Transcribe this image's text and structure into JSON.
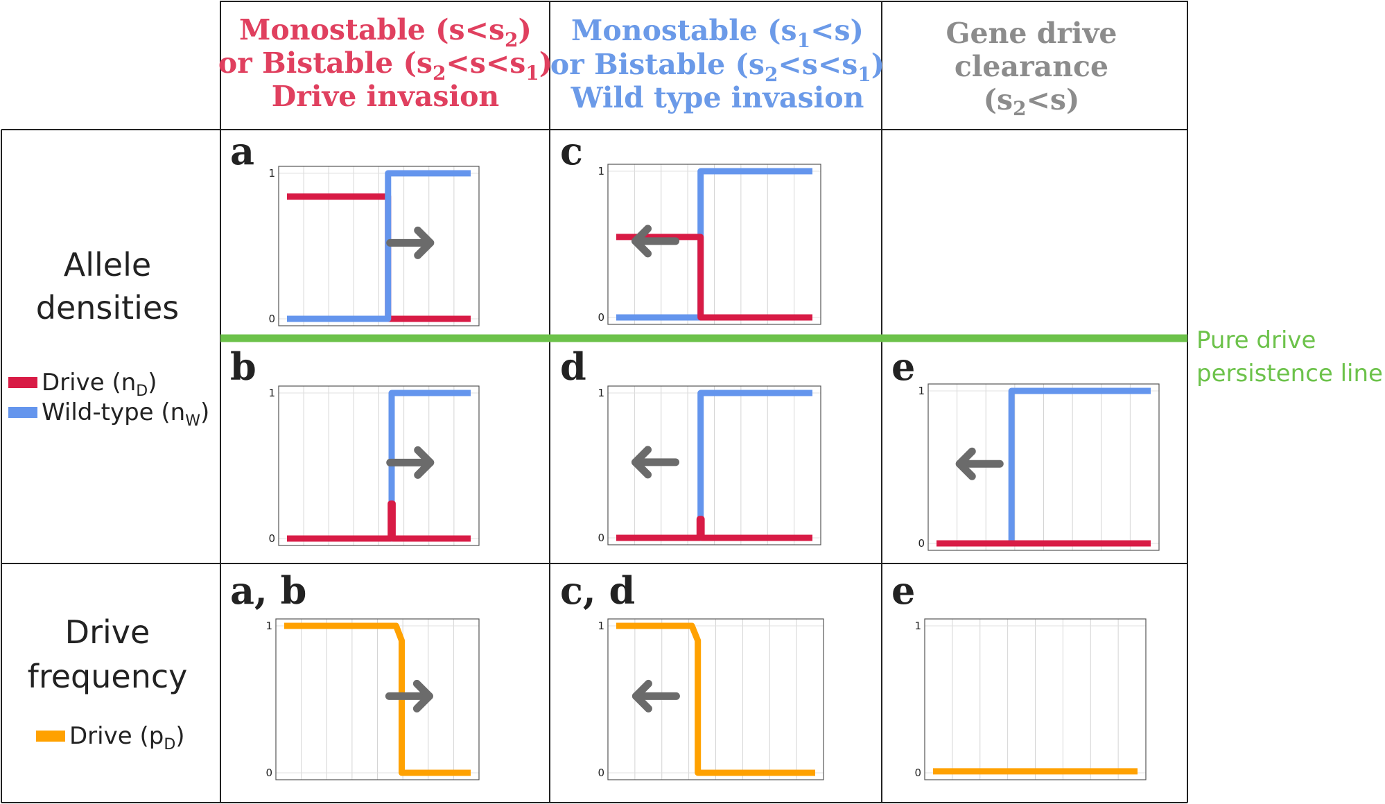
{
  "colors": {
    "drive": "#d81b45",
    "wild": "#6495ed",
    "freq": "#ffa100",
    "arrow": "#6b6b6b",
    "green": "#6cc24a",
    "header_red": "#e0405f",
    "header_blue": "#6b9ae8",
    "header_gray": "#8c8c8c"
  },
  "headers": {
    "col1": {
      "line1": "Monostable (s<s",
      "line1_sub": "2",
      "line1_end": ")",
      "line2a": "or Bistable (s",
      "line2_sub1": "2",
      "line2b": "<s<s",
      "line2_sub2": "1",
      "line2_end": ")",
      "line3": "Drive invasion"
    },
    "col2": {
      "line1": "Monostable (s",
      "line1_sub": "1",
      "line1_end": "<s)",
      "line2a": "or Bistable (s",
      "line2_sub1": "2",
      "line2b": "<s<s",
      "line2_sub2": "1",
      "line2_end": ")",
      "line3": "Wild type invasion"
    },
    "col3": {
      "line1": "Gene drive",
      "line2": "clearance",
      "line3a": "(s",
      "line3_sub": "2",
      "line3b": "<s)"
    }
  },
  "rows": {
    "allele": {
      "line1": "Allele",
      "line2": "densities"
    },
    "freq": {
      "line1": "Drive",
      "line2": "frequency"
    }
  },
  "legend": {
    "drive": {
      "text": "Drive (n",
      "sub": "D",
      "end": ")"
    },
    "wild": {
      "text": "Wild-type (n",
      "sub": "W",
      "end": ")"
    },
    "freq": {
      "text": "Drive (p",
      "sub": "D",
      "end": ")"
    }
  },
  "persistence_line": {
    "line1": "Pure drive",
    "line2": "persistence line"
  },
  "panel_labels": {
    "a": "a",
    "b": "b",
    "c": "c",
    "d": "d",
    "e": "e",
    "ab": "a, b",
    "cd": "c, d",
    "e2": "e"
  },
  "tick_labels": {
    "one": "1",
    "zero": "0"
  },
  "chart_data": [
    {
      "id": "a",
      "type": "line",
      "ylim": [
        0,
        1
      ],
      "arrow": "right",
      "series": [
        {
          "key": "drive",
          "points": [
            [
              0,
              0.84
            ],
            [
              0.55,
              0.84
            ],
            [
              0.55,
              0
            ],
            [
              1,
              0
            ]
          ]
        },
        {
          "key": "wild",
          "points": [
            [
              0,
              0
            ],
            [
              0.55,
              0
            ],
            [
              0.55,
              1
            ],
            [
              1,
              1
            ]
          ]
        }
      ]
    },
    {
      "id": "c",
      "type": "line",
      "ylim": [
        0,
        1
      ],
      "arrow": "left",
      "series": [
        {
          "key": "wild",
          "points": [
            [
              0,
              0
            ],
            [
              0.43,
              0
            ],
            [
              0.43,
              1
            ],
            [
              1,
              1
            ]
          ]
        },
        {
          "key": "drive",
          "points": [
            [
              0,
              0.55
            ],
            [
              0.43,
              0.55
            ],
            [
              0.43,
              0
            ],
            [
              1,
              0
            ]
          ]
        }
      ]
    },
    {
      "id": "b",
      "type": "line",
      "ylim": [
        0,
        1
      ],
      "arrow": "right",
      "series": [
        {
          "key": "wild",
          "points": [
            [
              0,
              0
            ],
            [
              0.57,
              0
            ],
            [
              0.57,
              1
            ],
            [
              1,
              1
            ]
          ]
        },
        {
          "key": "drive",
          "points": [
            [
              0,
              0
            ],
            [
              0.565,
              0
            ],
            [
              0.565,
              0.24
            ],
            [
              0.575,
              0.24
            ],
            [
              0.575,
              0
            ],
            [
              1,
              0
            ]
          ]
        }
      ]
    },
    {
      "id": "d",
      "type": "line",
      "ylim": [
        0,
        1
      ],
      "arrow": "left",
      "series": [
        {
          "key": "wild",
          "points": [
            [
              0,
              0
            ],
            [
              0.43,
              0
            ],
            [
              0.43,
              1
            ],
            [
              1,
              1
            ]
          ]
        },
        {
          "key": "drive",
          "points": [
            [
              0,
              0
            ],
            [
              0.425,
              0
            ],
            [
              0.425,
              0.13
            ],
            [
              0.435,
              0.13
            ],
            [
              0.435,
              0
            ],
            [
              1,
              0
            ]
          ]
        }
      ]
    },
    {
      "id": "e",
      "type": "line",
      "ylim": [
        0,
        1
      ],
      "arrow": "left",
      "series": [
        {
          "key": "wild",
          "points": [
            [
              0,
              0
            ],
            [
              0.35,
              0
            ],
            [
              0.35,
              1
            ],
            [
              1,
              1
            ]
          ]
        },
        {
          "key": "drive",
          "points": [
            [
              0,
              0
            ],
            [
              1,
              0
            ]
          ]
        }
      ]
    },
    {
      "id": "ab",
      "type": "line",
      "ylim": [
        0,
        1
      ],
      "arrow": "right",
      "series": [
        {
          "key": "freq",
          "points": [
            [
              0,
              1
            ],
            [
              0.6,
              1
            ],
            [
              0.63,
              0.9
            ],
            [
              0.63,
              0
            ],
            [
              1,
              0
            ]
          ]
        }
      ]
    },
    {
      "id": "cd",
      "type": "line",
      "ylim": [
        0,
        1
      ],
      "arrow": "left",
      "series": [
        {
          "key": "freq",
          "points": [
            [
              0,
              1
            ],
            [
              0.38,
              1
            ],
            [
              0.41,
              0.9
            ],
            [
              0.41,
              0
            ],
            [
              1,
              0
            ]
          ]
        }
      ]
    },
    {
      "id": "e2",
      "type": "line",
      "ylim": [
        0,
        1
      ],
      "arrow": "none",
      "series": [
        {
          "key": "freq",
          "points": [
            [
              0,
              0.01
            ],
            [
              1,
              0.01
            ]
          ]
        }
      ]
    }
  ]
}
